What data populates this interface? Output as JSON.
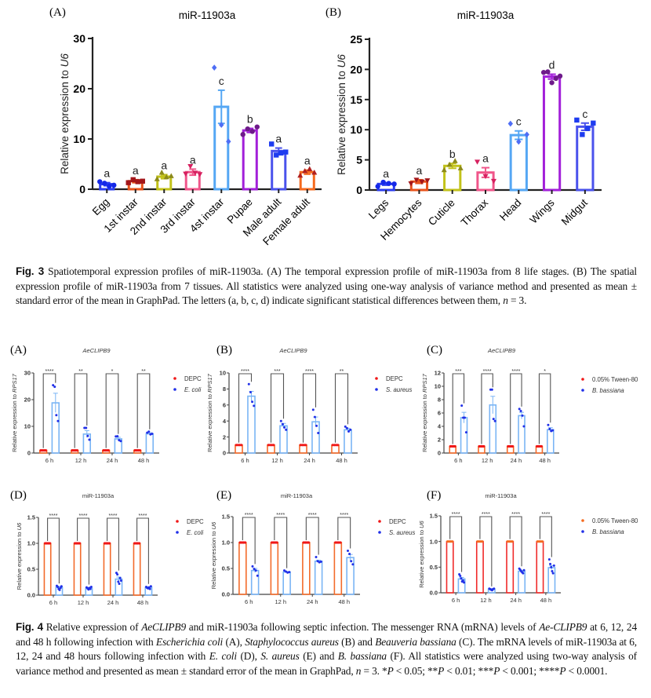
{
  "fig3": {
    "caption": {
      "label": "Fig. 3",
      "text": " Spatiotemporal expression profiles of miR-11903a. (A) The temporal expression profile of miR-11903a from 8 life stages. (B) The spatial expression profile of miR-11903a from 7 tissues. All statistics were analyzed using one-way analysis of variance method and presented as mean ± standard error of the mean in GraphPad. The letters (a, b, c, d) indicate significant statistical differences between them, ",
      "n_italic": "n",
      "tail": " = 3."
    }
  },
  "fig4": {
    "caption": {
      "label": "Fig. 4",
      "parts": [
        {
          "t": " Relative expression of ",
          "i": false
        },
        {
          "t": "AeCLIPB9",
          "i": true
        },
        {
          "t": " and miR-11903a following septic infection. The messenger RNA (mRNA) levels of ",
          "i": false
        },
        {
          "t": "Ae-CLIPB9",
          "i": true
        },
        {
          "t": " at 6, 12, 24 and 48 h following infection with ",
          "i": false
        },
        {
          "t": "Escherichia coli",
          "i": true
        },
        {
          "t": " (A), ",
          "i": false
        },
        {
          "t": "Staphylococcus aureus",
          "i": true
        },
        {
          "t": " (B) and ",
          "i": false
        },
        {
          "t": "Beauveria bassiana",
          "i": true
        },
        {
          "t": " (C). The mRNA levels of miR-11903a at 6, 12, 24 and 48 hours following infection with ",
          "i": false
        },
        {
          "t": "E. coli",
          "i": true
        },
        {
          "t": " (D), ",
          "i": false
        },
        {
          "t": "S. aureus",
          "i": true
        },
        {
          "t": " (E) and ",
          "i": false
        },
        {
          "t": "B. bassiana",
          "i": true
        },
        {
          "t": " (F). All statistics were analyzed using two-way analysis of variance method and presented as mean ± standard error of the mean in GraphPad, ",
          "i": false
        },
        {
          "t": "n",
          "i": true
        },
        {
          "t": " = 3. *",
          "i": false
        },
        {
          "t": "P",
          "i": true
        },
        {
          "t": " < 0.05; **",
          "i": false
        },
        {
          "t": "P",
          "i": true
        },
        {
          "t": " < 0.01; ***",
          "i": false
        },
        {
          "t": "P",
          "i": true
        },
        {
          "t": " < 0.001; ****",
          "i": false
        },
        {
          "t": "P",
          "i": true
        },
        {
          "t": " < 0.0001.",
          "i": false
        }
      ]
    }
  },
  "chart_data": [
    {
      "id": "fig3A",
      "panel": "(A)",
      "type": "bar",
      "title": "miR-11903a",
      "ylabel_prefix": "Relative expression to ",
      "ylabel_italic": "U6",
      "xlabel": "",
      "ylim": [
        0,
        30
      ],
      "yticks": [
        0,
        10,
        20,
        30
      ],
      "categories": [
        "Egg",
        "1st instar",
        "2nd instar",
        "3rd instar",
        "4st instar",
        "Pupae",
        "Male adult",
        "Female adult"
      ],
      "values": [
        1.0,
        1.6,
        2.5,
        3.4,
        16.4,
        11.7,
        7.6,
        3.4
      ],
      "sem": [
        0.3,
        0.3,
        0.4,
        0.6,
        3.3,
        0.4,
        0.6,
        0.4
      ],
      "points": [
        [
          1.5,
          1.2,
          0.6,
          0.8
        ],
        [
          1.3,
          1.9,
          1.5,
          1.6
        ],
        [
          2.0,
          3.3,
          2.4,
          2.6
        ],
        [
          3.1,
          4.6,
          3.3,
          3.0
        ],
        [
          24.2,
          12.8,
          9.5
        ],
        [
          10.9,
          12.0,
          11.5,
          12.4
        ],
        [
          9.0,
          6.8,
          7.2,
          7.4
        ],
        [
          2.7,
          3.6,
          4.0,
          3.3
        ]
      ],
      "letters": [
        "a",
        "a",
        "a",
        "a",
        "c",
        "b",
        "a",
        "a"
      ],
      "colors": [
        "#2b3cf0",
        "#e8531b",
        "#c2c21a",
        "#f0568a",
        "#55a7f4",
        "#a21fd9",
        "#4a52ec",
        "#f56a1e"
      ],
      "marker_colors": [
        "#1428e8",
        "#a3161a",
        "#8c8a1a",
        "#d6205f",
        "#4f6ef5",
        "#6e1a8a",
        "#1e3cf0",
        "#b02020"
      ],
      "markers": [
        "circle",
        "square",
        "triangle",
        "triangle-down",
        "diamond",
        "circle",
        "square",
        "triangle"
      ],
      "grid": false,
      "legend": "none"
    },
    {
      "id": "fig3B",
      "panel": "(B)",
      "type": "bar",
      "title": "miR-11903a",
      "ylabel_prefix": "Relative expression to ",
      "ylabel_italic": "U6",
      "xlabel": "",
      "ylim": [
        0,
        25
      ],
      "yticks": [
        0,
        5,
        10,
        15,
        20,
        25
      ],
      "categories": [
        "Legs",
        "Hemocytes",
        "Cuticle",
        "Thorax",
        "Head",
        "Wings",
        "Midgut"
      ],
      "values": [
        1.0,
        1.4,
        4.0,
        2.9,
        9.1,
        18.8,
        10.5
      ],
      "sem": [
        0.2,
        0.3,
        0.4,
        0.8,
        0.7,
        0.4,
        0.6
      ],
      "points": [
        [
          0.6,
          1.3,
          1.1,
          1.0
        ],
        [
          1.1,
          1.7,
          1.4,
          1.6
        ],
        [
          3.3,
          4.2,
          4.8,
          3.6
        ],
        [
          4.7,
          2.3,
          1.5
        ],
        [
          11.0,
          8.0,
          9.2
        ],
        [
          19.5,
          19.6,
          17.8,
          18.5,
          18.9
        ],
        [
          11.6,
          9.2,
          10.2,
          11.1
        ]
      ],
      "letters": [
        "a",
        "a",
        "b",
        "a",
        "c",
        "d",
        "c"
      ],
      "colors": [
        "#2b3cf0",
        "#e8531b",
        "#c2c21a",
        "#f0568a",
        "#55a7f4",
        "#a21fd9",
        "#4a52ec"
      ],
      "marker_colors": [
        "#1428e8",
        "#a3161a",
        "#8c8a1a",
        "#d6205f",
        "#4f6ef5",
        "#6e1a8a",
        "#1e3cf0"
      ],
      "markers": [
        "circle",
        "triangle-down",
        "triangle",
        "triangle-down",
        "diamond",
        "circle",
        "square"
      ],
      "grid": false,
      "legend": "none"
    },
    {
      "id": "fig4A",
      "panel": "(A)",
      "type": "bar",
      "title": "AeCLIPB9",
      "title_italic": true,
      "ylabel_prefix": "Relative expression to ",
      "ylabel_italic": "RPS17",
      "ylim": [
        0,
        30
      ],
      "yticks": [
        0,
        10,
        20,
        30
      ],
      "categories": [
        "6 h",
        "12 h",
        "24 h",
        "48 h"
      ],
      "series": [
        {
          "name": "DEPC",
          "values": [
            1,
            1,
            1,
            1
          ],
          "sem": [
            0,
            0,
            0,
            0
          ],
          "points": [
            [
              1,
              1,
              1,
              1
            ],
            [
              1,
              1,
              1,
              1
            ],
            [
              1,
              1,
              1,
              1
            ],
            [
              1,
              1,
              1,
              1
            ]
          ],
          "bar_color": "#f36b2b",
          "marker_color": "#f01818"
        },
        {
          "name": "E. coli",
          "italic": true,
          "values": [
            18.8,
            7.1,
            5.3,
            7.2
          ],
          "sem": [
            3.6,
            1.3,
            0.6,
            0.4
          ],
          "points": [
            [
              25.4,
              24.8,
              14.2,
              12.0
            ],
            [
              9.4,
              9.4,
              6.4,
              5.0
            ],
            [
              6.2,
              6.3,
              4.8,
              4.5
            ],
            [
              7.6,
              8.0,
              7.0,
              7.2
            ]
          ],
          "bar_color": "#7ab5f5",
          "marker_color": "#2130e8"
        }
      ],
      "significance": [
        "****",
        "**",
        "*",
        "**"
      ],
      "legend": "right"
    },
    {
      "id": "fig4B",
      "panel": "(B)",
      "type": "bar",
      "title": "AeCLIPB9",
      "title_italic": true,
      "ylabel_prefix": "Relative expression to ",
      "ylabel_italic": "RPS17",
      "ylim": [
        0,
        10
      ],
      "yticks": [
        0,
        2,
        4,
        6,
        8,
        10
      ],
      "categories": [
        "6 h",
        "12 h",
        "24 h",
        "48 h"
      ],
      "series": [
        {
          "name": "DEPC",
          "values": [
            1,
            1,
            1,
            1
          ],
          "sem": [
            0,
            0,
            0,
            0
          ],
          "points": [
            [
              1,
              1,
              1,
              1
            ],
            [
              1,
              1,
              1,
              1
            ],
            [
              1,
              1,
              1,
              1
            ],
            [
              1,
              1,
              1,
              1
            ]
          ],
          "bar_color": "#f36b2b",
          "marker_color": "#f01818"
        },
        {
          "name": "S. aureus",
          "italic": true,
          "values": [
            7.1,
            3.4,
            3.9,
            2.9
          ],
          "sem": [
            0.6,
            0.3,
            0.6,
            0.2
          ],
          "points": [
            [
              8.6,
              7.6,
              6.4,
              5.9
            ],
            [
              4.0,
              3.6,
              3.2,
              2.9
            ],
            [
              5.4,
              4.5,
              3.4,
              2.5
            ],
            [
              3.3,
              3.1,
              2.7,
              2.9
            ]
          ],
          "bar_color": "#7ab5f5",
          "marker_color": "#2130e8"
        }
      ],
      "significance": [
        "****",
        "***",
        "****",
        "**"
      ],
      "legend": "right"
    },
    {
      "id": "fig4C",
      "panel": "(C)",
      "type": "bar",
      "title": "AeCLIPB9",
      "title_italic": true,
      "ylabel_prefix": "Relative expression to ",
      "ylabel_italic": "RPS17",
      "ylim": [
        0,
        12
      ],
      "yticks": [
        0,
        2,
        4,
        6,
        8,
        10,
        12
      ],
      "categories": [
        "6 h",
        "12 h",
        "24 h",
        "48 h"
      ],
      "series": [
        {
          "name": "0.05% Tween-80",
          "values": [
            1,
            1,
            1,
            1
          ],
          "sem": [
            0,
            0,
            0,
            0
          ],
          "points": [
            [
              1,
              1,
              1,
              1
            ],
            [
              1,
              1,
              1,
              1
            ],
            [
              1,
              1,
              1,
              1
            ],
            [
              1,
              1,
              1,
              1
            ]
          ],
          "bar_color": "#f36b2b",
          "marker_color": "#f01818"
        },
        {
          "name": "B. bassiana",
          "italic": true,
          "values": [
            5.3,
            7.2,
            5.6,
            3.5
          ],
          "sem": [
            0.8,
            1.3,
            0.5,
            0.3
          ],
          "points": [
            [
              7.1,
              5.3,
              5.3,
              3.1
            ],
            [
              9.5,
              9.5,
              5.1,
              4.8
            ],
            [
              6.6,
              6.3,
              5.6,
              4.0
            ],
            [
              4.2,
              3.6,
              3.3,
              3.4
            ]
          ],
          "bar_color": "#7ab5f5",
          "marker_color": "#2130e8"
        }
      ],
      "significance": [
        "***",
        "****",
        "****",
        "*"
      ],
      "legend": "right"
    },
    {
      "id": "fig4D",
      "panel": "(D)",
      "type": "bar",
      "title": "miR-11903a",
      "title_italic": false,
      "ylabel_prefix": "Relative expression to ",
      "ylabel_italic": "U6",
      "ylim": [
        0,
        1.5
      ],
      "yticks": [
        0.0,
        0.5,
        1.0,
        1.5
      ],
      "categories": [
        "6 h",
        "12 h",
        "24 h",
        "48 h"
      ],
      "series": [
        {
          "name": "DEPC",
          "values": [
            1,
            1,
            1,
            1
          ],
          "sem": [
            0,
            0,
            0,
            0
          ],
          "points": [
            [
              1,
              1,
              1,
              1
            ],
            [
              1,
              1,
              1,
              1
            ],
            [
              1,
              1,
              1,
              1
            ],
            [
              1,
              1,
              1,
              1
            ]
          ],
          "bar_color": "#f36b2b",
          "marker_color": "#f01818"
        },
        {
          "name": "E. coli",
          "italic": true,
          "values": [
            0.15,
            0.13,
            0.31,
            0.15
          ],
          "sem": [
            0.02,
            0.01,
            0.04,
            0.01
          ],
          "points": [
            [
              0.18,
              0.16,
              0.12,
              0.1,
              0.14,
              0.17
            ],
            [
              0.15,
              0.13,
              0.11,
              0.14,
              0.12,
              0.16
            ],
            [
              0.43,
              0.4,
              0.26,
              0.22,
              0.33,
              0.28
            ],
            [
              0.16,
              0.14,
              0.13,
              0.15,
              0.12,
              0.17
            ]
          ],
          "bar_color": "#7ab5f5",
          "marker_color": "#2130e8"
        }
      ],
      "significance": [
        "****",
        "****",
        "****",
        "****"
      ],
      "legend": "right"
    },
    {
      "id": "fig4E",
      "panel": "(E)",
      "type": "bar",
      "title": "miR-11903a",
      "title_italic": false,
      "ylabel_prefix": "Relative expression to ",
      "ylabel_italic": "U6",
      "ylim": [
        0,
        1.5
      ],
      "yticks": [
        0.0,
        0.5,
        1.0,
        1.5
      ],
      "categories": [
        "6 h",
        "12 h",
        "24 h",
        "48 h"
      ],
      "series": [
        {
          "name": "DEPC",
          "values": [
            1,
            1,
            1,
            1
          ],
          "sem": [
            0,
            0,
            0,
            0
          ],
          "points": [
            [
              1,
              1,
              1,
              1
            ],
            [
              1,
              1,
              1,
              1
            ],
            [
              1,
              1,
              1,
              1
            ],
            [
              1,
              1,
              1,
              1
            ]
          ],
          "bar_color": "#f36b2b",
          "marker_color": "#f01818"
        },
        {
          "name": "S. aureus",
          "italic": true,
          "values": [
            0.46,
            0.43,
            0.64,
            0.71
          ],
          "sem": [
            0.04,
            0.01,
            0.02,
            0.06
          ],
          "points": [
            [
              0.54,
              0.49,
              0.46,
              0.36
            ],
            [
              0.46,
              0.44,
              0.42,
              0.43
            ],
            [
              0.72,
              0.64,
              0.62,
              0.63
            ],
            [
              0.84,
              0.78,
              0.64,
              0.58
            ]
          ],
          "bar_color": "#7ab5f5",
          "marker_color": "#2130e8"
        }
      ],
      "significance": [
        "****",
        "****",
        "****",
        "****"
      ],
      "legend": "right"
    },
    {
      "id": "fig4F",
      "panel": "(F)",
      "type": "bar",
      "title": "miR-11903a",
      "title_italic": false,
      "ylabel_prefix": "Relative expression to ",
      "ylabel_italic": "U6",
      "ylim": [
        0,
        1.5
      ],
      "yticks": [
        0.0,
        0.5,
        1.0,
        1.5
      ],
      "categories": [
        "6 h",
        "12 h",
        "24 h",
        "48 h"
      ],
      "series": [
        {
          "name": "0.05% Tween-80",
          "values": [
            1,
            1,
            1,
            1
          ],
          "sem": [
            0,
            0,
            0,
            0
          ],
          "points": [
            [
              1,
              1,
              1,
              1
            ],
            [
              1,
              1,
              1,
              1
            ],
            [
              1,
              1,
              1,
              1
            ],
            [
              1,
              1,
              1,
              1
            ]
          ],
          "bar_color": "#f02a2a",
          "marker_color": "#f56a1e"
        },
        {
          "name": "B. bassiana",
          "italic": true,
          "values": [
            0.27,
            0.07,
            0.42,
            0.49
          ],
          "sem": [
            0.03,
            0.01,
            0.02,
            0.04
          ],
          "points": [
            [
              0.36,
              0.33,
              0.28,
              0.22,
              0.24,
              0.2
            ],
            [
              0.08,
              0.07,
              0.06,
              0.05,
              0.07,
              0.08
            ],
            [
              0.47,
              0.45,
              0.42,
              0.4,
              0.38,
              0.44
            ],
            [
              0.65,
              0.56,
              0.5,
              0.42,
              0.38,
              0.53
            ]
          ],
          "bar_color": "#7ab5f5",
          "marker_color": "#2130e8"
        }
      ],
      "significance": [
        "****",
        "****",
        "****",
        "****"
      ],
      "legend": "right"
    }
  ]
}
